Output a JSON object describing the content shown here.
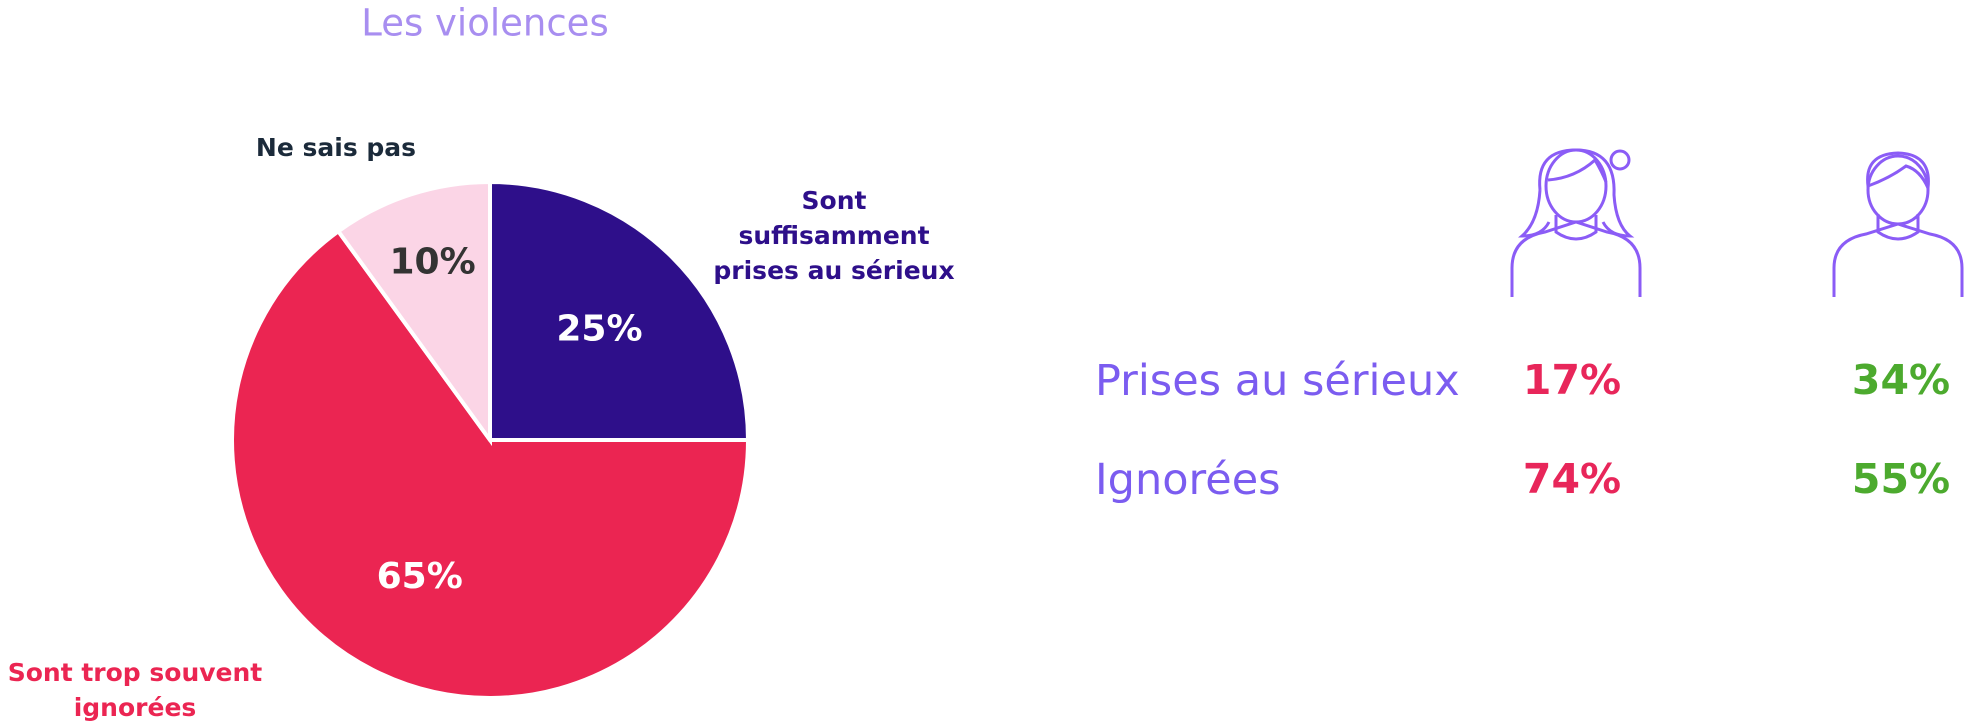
{
  "chart_data": {
    "type": "pie",
    "title": "Les violences",
    "categories": [
      "Sont suffisamment prises au sérieux",
      "Sont trop souvent ignorées",
      "Ne sais pas"
    ],
    "values": [
      25,
      65,
      10
    ],
    "value_labels": [
      "25%",
      "65%",
      "10%"
    ],
    "colors": [
      "#2e0f8a",
      "#eb2552",
      "#fbd5e6"
    ],
    "label_colors": [
      "#2e0f8a",
      "#eb2552",
      "#1b2a3a"
    ],
    "value_label_colors": [
      "#ffffff",
      "#ffffff",
      "#333333"
    ]
  },
  "comparison": {
    "rows": [
      {
        "label": "Prises au sérieux",
        "women": "17%",
        "men": "34%"
      },
      {
        "label": "Ignorées",
        "women": "74%",
        "men": "55%"
      }
    ]
  }
}
